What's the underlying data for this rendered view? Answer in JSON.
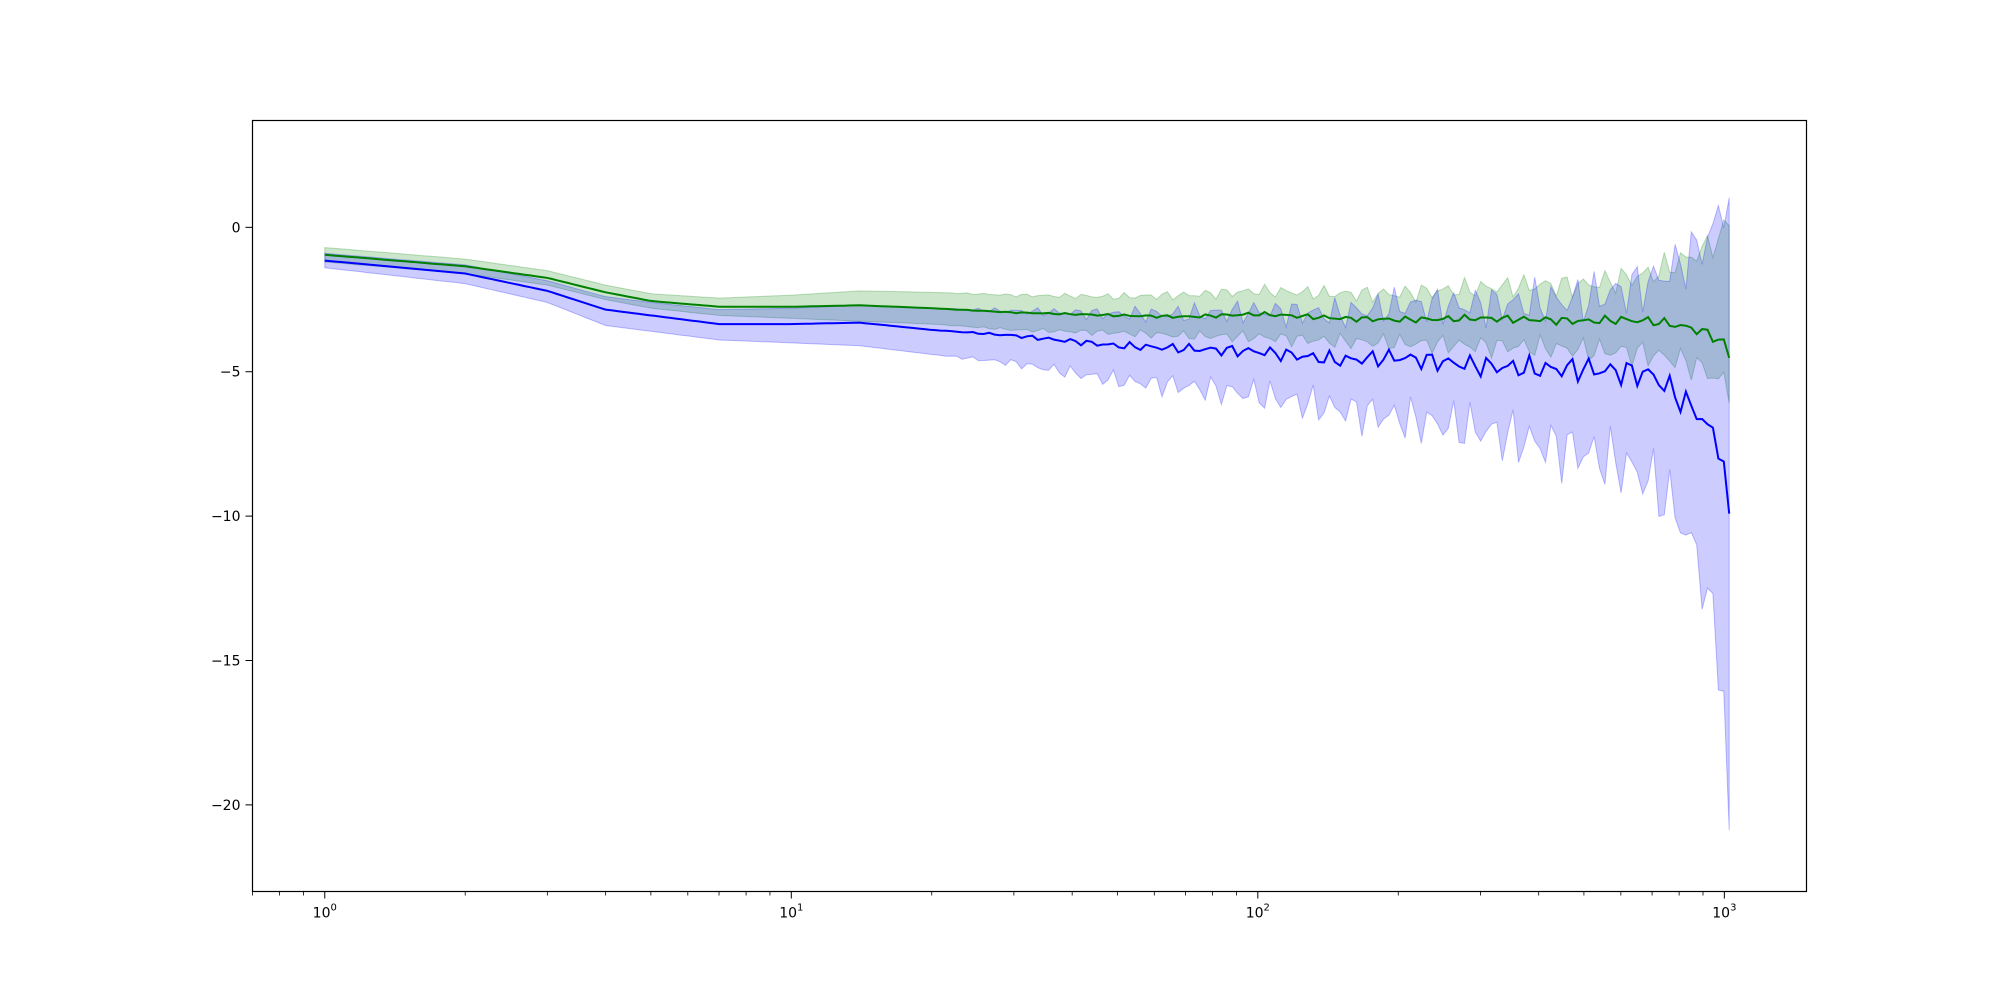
{
  "chart_data": {
    "type": "line",
    "title": "",
    "xlabel": "",
    "ylabel": "",
    "x_scale": "log",
    "xlim": [
      0.7,
      1500
    ],
    "ylim": [
      -23.0,
      3.7
    ],
    "grid": false,
    "legend": "none",
    "x_ticks": [
      {
        "value": 1,
        "base": "10",
        "exp": "0"
      },
      {
        "value": 10,
        "base": "10",
        "exp": "1"
      },
      {
        "value": 100,
        "base": "10",
        "exp": "2"
      },
      {
        "value": 1000,
        "base": "10",
        "exp": "3"
      }
    ],
    "y_ticks": [
      {
        "value": 0,
        "label": "0"
      },
      {
        "value": -5,
        "label": "−5"
      },
      {
        "value": -10,
        "label": "−10"
      },
      {
        "value": -15,
        "label": "−15"
      },
      {
        "value": -20,
        "label": "−20"
      }
    ],
    "series": [
      {
        "color": "#008000",
        "band_color": "#008000",
        "x": [
          1,
          2,
          3,
          4,
          5,
          7,
          10,
          14,
          20,
          30,
          50,
          70,
          100,
          150,
          200,
          300,
          400,
          500,
          600,
          700,
          800,
          900,
          1000,
          1024
        ],
        "y": [
          -0.95,
          -1.35,
          -1.75,
          -2.25,
          -2.55,
          -2.75,
          -2.75,
          -2.7,
          -2.8,
          -2.95,
          -3.05,
          -3.1,
          -3.0,
          -3.15,
          -3.2,
          -3.15,
          -3.2,
          -3.25,
          -3.2,
          -3.25,
          -3.4,
          -3.6,
          -4.0,
          -4.5
        ],
        "lower": [
          -1.2,
          -1.6,
          -2.0,
          -2.5,
          -2.8,
          -3.05,
          -3.15,
          -3.25,
          -3.35,
          -3.55,
          -3.65,
          -3.75,
          -3.8,
          -3.95,
          -4.0,
          -4.1,
          -4.15,
          -4.25,
          -4.3,
          -4.4,
          -4.6,
          -4.9,
          -5.4,
          -5.8
        ],
        "upper": [
          -0.7,
          -1.1,
          -1.5,
          -2.0,
          -2.3,
          -2.45,
          -2.35,
          -2.2,
          -2.25,
          -2.35,
          -2.4,
          -2.35,
          -2.2,
          -2.3,
          -2.3,
          -2.1,
          -2.0,
          -2.0,
          -1.8,
          -1.6,
          -1.2,
          -0.8,
          -0.2,
          0.3
        ]
      },
      {
        "color": "#0000ff",
        "band_color": "#0000ff",
        "x": [
          1,
          2,
          3,
          4,
          5,
          7,
          10,
          14,
          20,
          30,
          50,
          70,
          100,
          150,
          200,
          300,
          400,
          500,
          600,
          700,
          800,
          900,
          1000,
          1024
        ],
        "y": [
          -1.15,
          -1.6,
          -2.2,
          -2.85,
          -3.05,
          -3.35,
          -3.35,
          -3.3,
          -3.55,
          -3.75,
          -4.1,
          -4.2,
          -4.3,
          -4.6,
          -4.5,
          -4.8,
          -4.9,
          -4.9,
          -5.0,
          -5.1,
          -5.9,
          -6.6,
          -8.0,
          -10.5
        ],
        "lower": [
          -1.4,
          -1.95,
          -2.6,
          -3.4,
          -3.6,
          -3.9,
          -4.0,
          -4.1,
          -4.4,
          -4.7,
          -5.3,
          -5.5,
          -5.8,
          -6.3,
          -6.6,
          -7.0,
          -7.5,
          -7.8,
          -8.2,
          -8.8,
          -10.0,
          -12.0,
          -16.0,
          -21.5
        ],
        "upper": [
          -0.9,
          -1.3,
          -1.85,
          -2.4,
          -2.6,
          -2.85,
          -2.8,
          -2.7,
          -2.8,
          -2.9,
          -3.0,
          -3.0,
          -2.9,
          -3.0,
          -2.7,
          -2.7,
          -2.6,
          -2.5,
          -2.2,
          -1.9,
          -1.3,
          -0.6,
          0.6,
          1.5
        ]
      }
    ]
  }
}
